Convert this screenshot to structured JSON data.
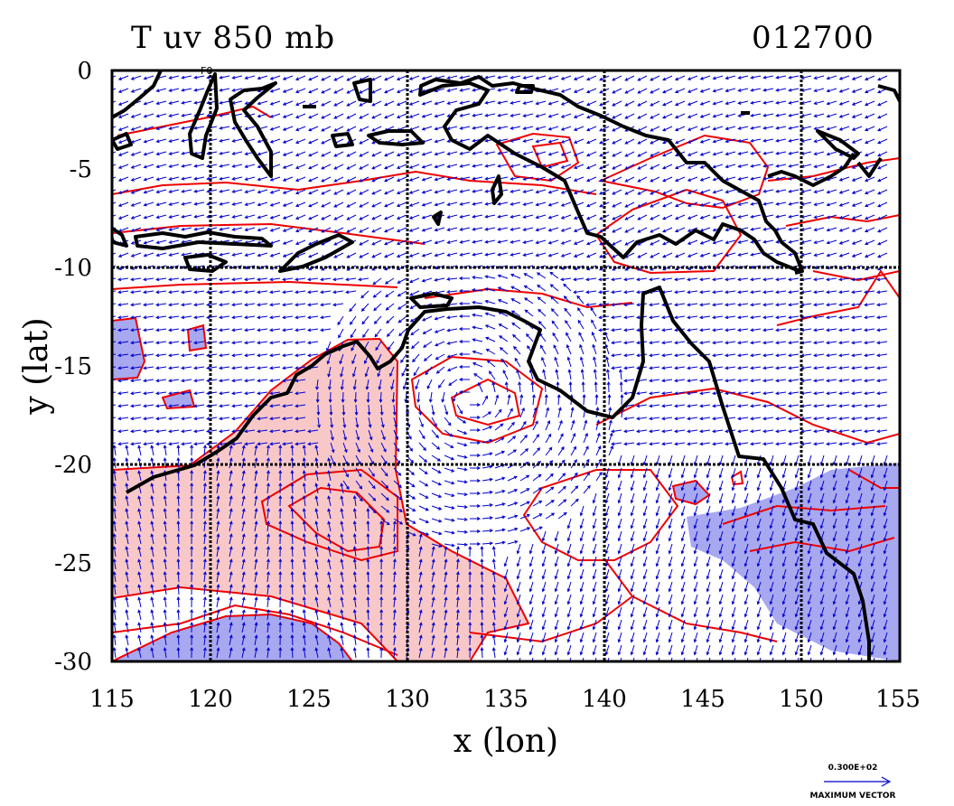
{
  "title_left": "T uv 850 mb",
  "title_right": "012700",
  "stray_label": "F0",
  "map_data": {
    "type": "contour-vector-map",
    "xlabel": "x (lon)",
    "ylabel": "y (lat)",
    "xlim": [
      115,
      155
    ],
    "ylim": [
      -30,
      0
    ],
    "xticks": [
      115,
      120,
      125,
      130,
      135,
      140,
      145,
      150,
      155
    ],
    "yticks": [
      0,
      -5,
      -10,
      -15,
      -20,
      -25,
      -30
    ],
    "xgrid": [
      120,
      130,
      140,
      150
    ],
    "ygrid": [
      -10,
      -20
    ],
    "grid": true,
    "vector_key": {
      "magnitude": "0.300E+02",
      "caption": "MAXIMUM VECTOR"
    },
    "colors": {
      "coastline": "#000000",
      "contour": "#ee0000",
      "warm_fill": "#f8c8c8",
      "cold_fill": "#a8a8f0",
      "vectors": "#0000cc"
    }
  }
}
